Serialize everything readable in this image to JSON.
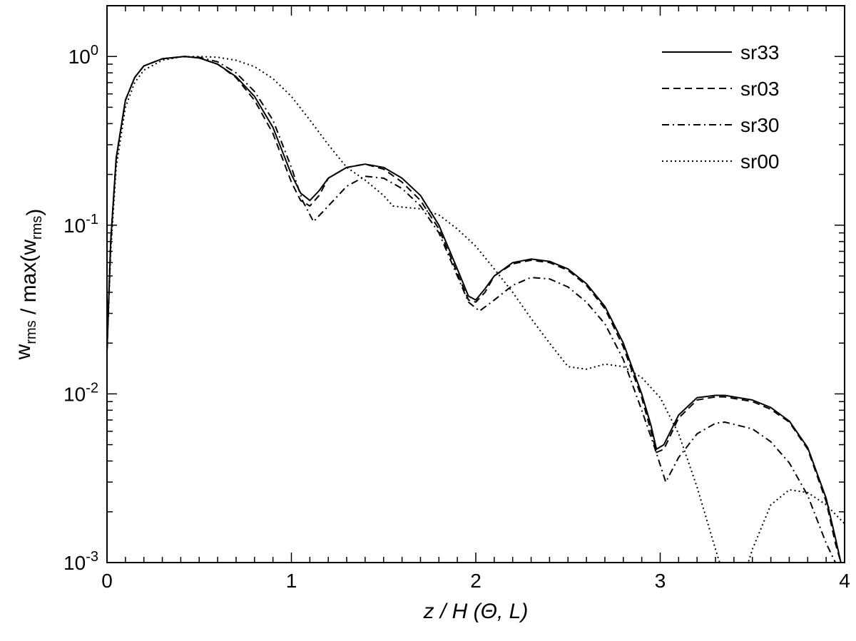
{
  "chart_data": {
    "type": "line",
    "xlabel": "z / H (Θ, L)",
    "ylabel": "w_rms / max(w_rms)",
    "xlim": [
      0,
      4
    ],
    "ylim": [
      0.001,
      2.0
    ],
    "yscale": "log",
    "grid": false,
    "legend_position": "top-right",
    "x_ticks": [
      0,
      1,
      2,
      3,
      4
    ],
    "x_tick_labels": [
      "0",
      "1",
      "2",
      "3",
      "4"
    ],
    "y_ticks": [
      0.001,
      0.01,
      0.1,
      1.0
    ],
    "y_tick_labels": [
      {
        "base": "10",
        "exp": "-3"
      },
      {
        "base": "10",
        "exp": "-2"
      },
      {
        "base": "10",
        "exp": "-1"
      },
      {
        "base": "10",
        "exp": "0"
      }
    ],
    "series": [
      {
        "name": "sr33",
        "style": "solid",
        "x": [
          0.0,
          0.02,
          0.05,
          0.1,
          0.15,
          0.2,
          0.3,
          0.42,
          0.5,
          0.6,
          0.7,
          0.8,
          0.9,
          1.0,
          1.05,
          1.1,
          1.15,
          1.2,
          1.3,
          1.4,
          1.5,
          1.6,
          1.7,
          1.8,
          1.9,
          1.96,
          2.0,
          2.05,
          2.1,
          2.2,
          2.3,
          2.4,
          2.5,
          2.6,
          2.7,
          2.8,
          2.9,
          2.95,
          2.98,
          3.02,
          3.1,
          3.2,
          3.3,
          3.35,
          3.5,
          3.6,
          3.7,
          3.8,
          3.9,
          3.95,
          3.98
        ],
        "y": [
          0.018,
          0.08,
          0.25,
          0.55,
          0.75,
          0.88,
          0.97,
          1.0,
          0.98,
          0.9,
          0.76,
          0.58,
          0.38,
          0.2,
          0.155,
          0.14,
          0.16,
          0.19,
          0.22,
          0.23,
          0.22,
          0.19,
          0.15,
          0.1,
          0.055,
          0.038,
          0.036,
          0.042,
          0.05,
          0.06,
          0.063,
          0.061,
          0.055,
          0.045,
          0.033,
          0.02,
          0.01,
          0.0065,
          0.0047,
          0.005,
          0.0075,
          0.0095,
          0.0098,
          0.0098,
          0.0092,
          0.0083,
          0.0069,
          0.0048,
          0.0024,
          0.0014,
          0.001
        ]
      },
      {
        "name": "sr03",
        "style": "dashed",
        "x": [
          0.0,
          0.02,
          0.05,
          0.1,
          0.15,
          0.2,
          0.3,
          0.42,
          0.5,
          0.6,
          0.7,
          0.8,
          0.9,
          1.0,
          1.05,
          1.1,
          1.15,
          1.2,
          1.3,
          1.4,
          1.5,
          1.6,
          1.7,
          1.8,
          1.9,
          1.96,
          2.0,
          2.05,
          2.1,
          2.2,
          2.3,
          2.4,
          2.5,
          2.6,
          2.7,
          2.8,
          2.9,
          2.95,
          2.98,
          3.02,
          3.1,
          3.2,
          3.3,
          3.35,
          3.5,
          3.6,
          3.7,
          3.8,
          3.9,
          3.95,
          3.98
        ],
        "y": [
          0.018,
          0.08,
          0.25,
          0.55,
          0.75,
          0.88,
          0.97,
          1.0,
          0.98,
          0.9,
          0.75,
          0.55,
          0.35,
          0.18,
          0.14,
          0.13,
          0.15,
          0.19,
          0.22,
          0.23,
          0.215,
          0.18,
          0.14,
          0.095,
          0.052,
          0.036,
          0.035,
          0.04,
          0.05,
          0.059,
          0.062,
          0.06,
          0.054,
          0.044,
          0.032,
          0.019,
          0.0095,
          0.006,
          0.0045,
          0.0047,
          0.0072,
          0.0092,
          0.0096,
          0.0096,
          0.009,
          0.0081,
          0.0068,
          0.0047,
          0.0023,
          0.0013,
          0.001
        ]
      },
      {
        "name": "sr30",
        "style": "dashdot",
        "x": [
          0.0,
          0.02,
          0.05,
          0.1,
          0.15,
          0.2,
          0.3,
          0.42,
          0.5,
          0.6,
          0.7,
          0.8,
          0.9,
          1.0,
          1.06,
          1.12,
          1.2,
          1.3,
          1.4,
          1.5,
          1.6,
          1.7,
          1.8,
          1.9,
          1.96,
          2.02,
          2.1,
          2.2,
          2.3,
          2.4,
          2.5,
          2.6,
          2.7,
          2.8,
          2.9,
          2.97,
          3.03,
          3.1,
          3.2,
          3.3,
          3.35,
          3.5,
          3.6,
          3.7,
          3.8,
          3.9,
          3.95
        ],
        "y": [
          0.018,
          0.08,
          0.25,
          0.55,
          0.75,
          0.88,
          0.97,
          1.0,
          0.99,
          0.93,
          0.8,
          0.62,
          0.42,
          0.22,
          0.14,
          0.105,
          0.13,
          0.17,
          0.195,
          0.19,
          0.165,
          0.13,
          0.09,
          0.05,
          0.035,
          0.031,
          0.036,
          0.044,
          0.049,
          0.048,
          0.043,
          0.035,
          0.026,
          0.016,
          0.008,
          0.0048,
          0.003,
          0.0042,
          0.0058,
          0.0067,
          0.0068,
          0.0062,
          0.0052,
          0.0039,
          0.0025,
          0.0013,
          0.001
        ]
      },
      {
        "name": "sr00",
        "style": "dotted",
        "x": [
          0.0,
          0.02,
          0.05,
          0.1,
          0.15,
          0.2,
          0.3,
          0.4,
          0.5,
          0.6,
          0.7,
          0.8,
          0.9,
          1.0,
          1.1,
          1.2,
          1.3,
          1.4,
          1.5,
          1.55,
          1.6,
          1.7,
          1.8,
          1.9,
          2.0,
          2.1,
          2.2,
          2.3,
          2.4,
          2.5,
          2.6,
          2.7,
          2.8,
          2.9,
          3.0,
          3.1,
          3.2,
          3.3,
          3.35,
          3.45,
          3.5,
          3.6,
          3.7,
          3.8,
          3.9,
          4.0
        ],
        "y": [
          0.018,
          0.07,
          0.22,
          0.5,
          0.7,
          0.83,
          0.95,
          0.995,
          1.0,
          0.99,
          0.95,
          0.87,
          0.74,
          0.58,
          0.42,
          0.3,
          0.22,
          0.185,
          0.15,
          0.13,
          0.128,
          0.125,
          0.115,
          0.095,
          0.075,
          0.055,
          0.04,
          0.028,
          0.02,
          0.0145,
          0.014,
          0.015,
          0.0145,
          0.0125,
          0.0095,
          0.0058,
          0.0028,
          0.0012,
          0.0008,
          0.0008,
          0.0012,
          0.0022,
          0.0027,
          0.0026,
          0.0022,
          0.0017
        ]
      }
    ]
  }
}
